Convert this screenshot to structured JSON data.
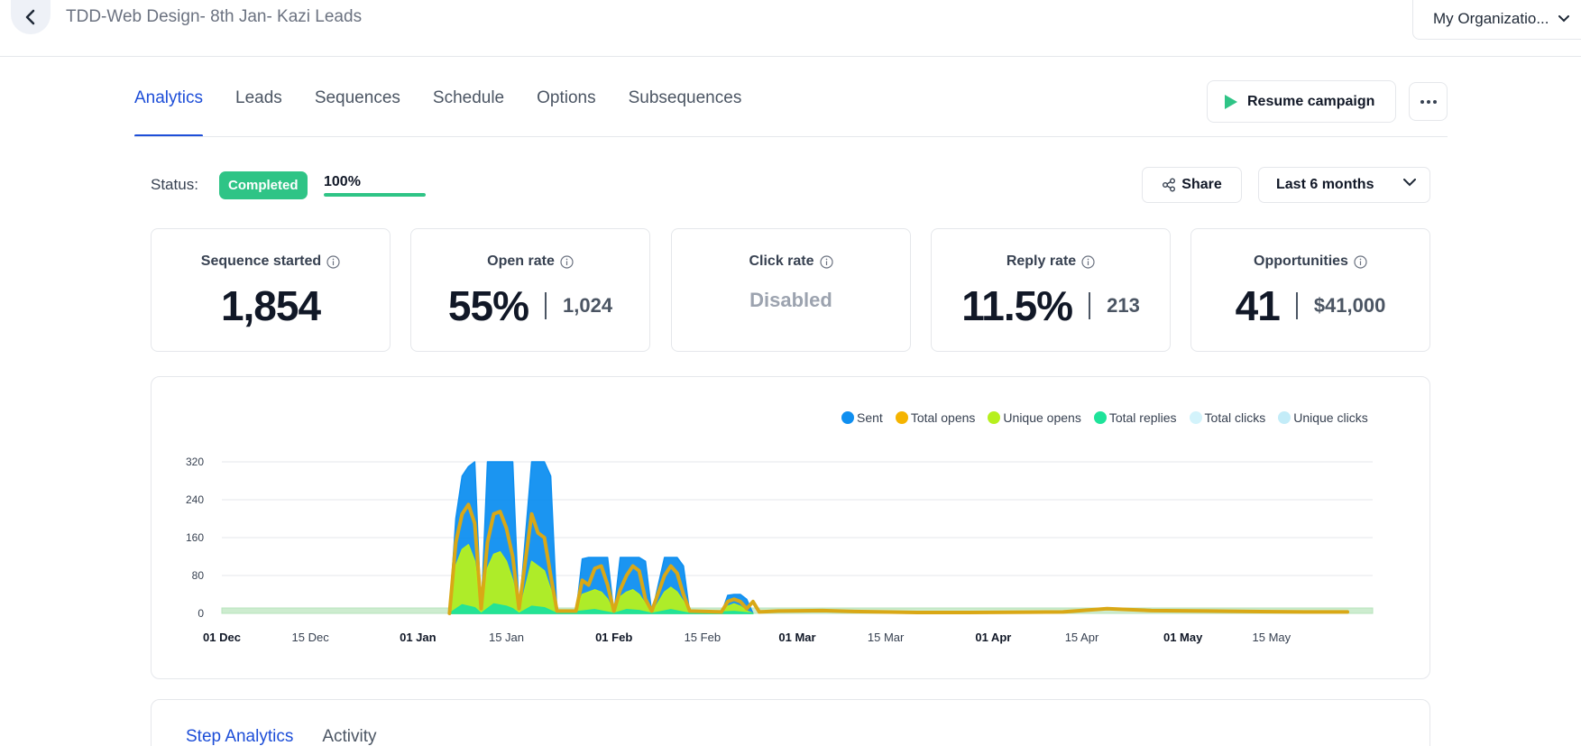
{
  "header": {
    "campaign_title": "TDD-Web Design- 8th Jan- Kazi Leads",
    "organization": "My Organizatio..."
  },
  "tabs": [
    {
      "label": "Analytics",
      "active": true
    },
    {
      "label": "Leads"
    },
    {
      "label": "Sequences"
    },
    {
      "label": "Schedule"
    },
    {
      "label": "Options"
    },
    {
      "label": "Subsequences"
    }
  ],
  "actions": {
    "resume_label": "Resume campaign",
    "share_label": "Share",
    "date_range": "Last 6 months"
  },
  "status": {
    "label": "Status:",
    "value": "Completed",
    "progress_text": "100%",
    "progress": 100
  },
  "stats": {
    "sequence_started": {
      "title": "Sequence started",
      "value": "1,854"
    },
    "open_rate": {
      "title": "Open rate",
      "value": "55%",
      "count": "1,024"
    },
    "click_rate": {
      "title": "Click rate",
      "value": "Disabled"
    },
    "reply_rate": {
      "title": "Reply rate",
      "value": "11.5%",
      "count": "213"
    },
    "opportunities": {
      "title": "Opportunities",
      "value": "41",
      "amount": "$41,000"
    }
  },
  "colors": {
    "accent": "#1d4ed8",
    "completed": "#2fc486",
    "sent": "#0f8ff0",
    "total_opens": "#f5b400",
    "unique_opens": "#b6f01e",
    "total_replies": "#1ee39a",
    "total_clicks": "#d3f3fb",
    "unique_clicks": "#c3ecf8"
  },
  "chart_data": {
    "type": "area",
    "ylim": [
      0,
      320
    ],
    "yticks": [
      0,
      80,
      160,
      240,
      320
    ],
    "x_ticks": [
      {
        "label": "01 Dec",
        "date": "2023-12-01",
        "bold": true
      },
      {
        "label": "15 Dec",
        "date": "2023-12-15",
        "bold": false
      },
      {
        "label": "01 Jan",
        "date": "2024-01-01",
        "bold": true
      },
      {
        "label": "15 Jan",
        "date": "2024-01-15",
        "bold": false
      },
      {
        "label": "01 Feb",
        "date": "2024-02-01",
        "bold": true
      },
      {
        "label": "15 Feb",
        "date": "2024-02-15",
        "bold": false
      },
      {
        "label": "01 Mar",
        "date": "2024-03-01",
        "bold": true
      },
      {
        "label": "15 Mar",
        "date": "2024-03-15",
        "bold": false
      },
      {
        "label": "01 Apr",
        "date": "2024-04-01",
        "bold": true
      },
      {
        "label": "15 Apr",
        "date": "2024-04-15",
        "bold": false
      },
      {
        "label": "01 May",
        "date": "2024-05-01",
        "bold": true
      },
      {
        "label": "15 May",
        "date": "2024-05-15",
        "bold": false
      }
    ],
    "x_range": [
      "2023-12-01",
      "2024-05-31"
    ],
    "series": [
      {
        "name": "Sent",
        "color": "#0f8ff0",
        "style": "area",
        "points": [
          [
            "2024-01-06",
            0
          ],
          [
            "2024-01-07",
            200
          ],
          [
            "2024-01-08",
            290
          ],
          [
            "2024-01-09",
            310
          ],
          [
            "2024-01-10",
            320
          ],
          [
            "2024-01-11",
            0
          ],
          [
            "2024-01-12",
            320
          ],
          [
            "2024-01-13",
            320
          ],
          [
            "2024-01-14",
            320
          ],
          [
            "2024-01-15",
            320
          ],
          [
            "2024-01-16",
            320
          ],
          [
            "2024-01-17",
            0
          ],
          [
            "2024-01-19",
            320
          ],
          [
            "2024-01-20",
            320
          ],
          [
            "2024-01-21",
            320
          ],
          [
            "2024-01-22",
            290
          ],
          [
            "2024-01-23",
            0
          ],
          [
            "2024-01-26",
            0
          ],
          [
            "2024-01-27",
            115
          ],
          [
            "2024-01-28",
            118
          ],
          [
            "2024-01-29",
            118
          ],
          [
            "2024-01-30",
            118
          ],
          [
            "2024-01-31",
            118
          ],
          [
            "2024-02-01",
            0
          ],
          [
            "2024-02-02",
            118
          ],
          [
            "2024-02-03",
            118
          ],
          [
            "2024-02-04",
            118
          ],
          [
            "2024-02-05",
            118
          ],
          [
            "2024-02-06",
            110
          ],
          [
            "2024-02-07",
            0
          ],
          [
            "2024-02-09",
            118
          ],
          [
            "2024-02-10",
            118
          ],
          [
            "2024-02-11",
            118
          ],
          [
            "2024-02-12",
            100
          ],
          [
            "2024-02-13",
            0
          ],
          [
            "2024-02-18",
            0
          ],
          [
            "2024-02-19",
            38
          ],
          [
            "2024-02-20",
            40
          ],
          [
            "2024-02-21",
            40
          ],
          [
            "2024-02-22",
            30
          ],
          [
            "2024-02-23",
            0
          ]
        ]
      },
      {
        "name": "Total opens",
        "color": "#f5b400",
        "style": "line",
        "points": [
          [
            "2024-01-06",
            0
          ],
          [
            "2024-01-07",
            150
          ],
          [
            "2024-01-08",
            210
          ],
          [
            "2024-01-09",
            230
          ],
          [
            "2024-01-10",
            190
          ],
          [
            "2024-01-11",
            10
          ],
          [
            "2024-01-12",
            150
          ],
          [
            "2024-01-13",
            210
          ],
          [
            "2024-01-14",
            215
          ],
          [
            "2024-01-15",
            180
          ],
          [
            "2024-01-16",
            120
          ],
          [
            "2024-01-17",
            10
          ],
          [
            "2024-01-19",
            210
          ],
          [
            "2024-01-20",
            170
          ],
          [
            "2024-01-21",
            160
          ],
          [
            "2024-01-22",
            80
          ],
          [
            "2024-01-23",
            5
          ],
          [
            "2024-01-26",
            5
          ],
          [
            "2024-01-27",
            70
          ],
          [
            "2024-01-28",
            60
          ],
          [
            "2024-01-29",
            95
          ],
          [
            "2024-01-30",
            100
          ],
          [
            "2024-01-31",
            60
          ],
          [
            "2024-02-01",
            5
          ],
          [
            "2024-02-02",
            50
          ],
          [
            "2024-02-03",
            80
          ],
          [
            "2024-02-04",
            100
          ],
          [
            "2024-02-05",
            90
          ],
          [
            "2024-02-06",
            30
          ],
          [
            "2024-02-07",
            5
          ],
          [
            "2024-02-09",
            80
          ],
          [
            "2024-02-10",
            100
          ],
          [
            "2024-02-11",
            85
          ],
          [
            "2024-02-12",
            40
          ],
          [
            "2024-02-13",
            5
          ],
          [
            "2024-02-18",
            3
          ],
          [
            "2024-02-19",
            25
          ],
          [
            "2024-02-20",
            30
          ],
          [
            "2024-02-21",
            25
          ],
          [
            "2024-02-22",
            10
          ],
          [
            "2024-02-23",
            25
          ],
          [
            "2024-02-24",
            3
          ],
          [
            "2024-02-27",
            5
          ],
          [
            "2024-03-05",
            6
          ],
          [
            "2024-03-10",
            4
          ],
          [
            "2024-03-20",
            2
          ],
          [
            "2024-03-28",
            2
          ],
          [
            "2024-04-12",
            3
          ],
          [
            "2024-04-19",
            10
          ],
          [
            "2024-04-26",
            6
          ],
          [
            "2024-05-05",
            5
          ],
          [
            "2024-05-20",
            3
          ],
          [
            "2024-05-27",
            3
          ]
        ]
      },
      {
        "name": "Unique opens",
        "color": "#b6f01e",
        "style": "area",
        "points": [
          [
            "2024-01-06",
            0
          ],
          [
            "2024-01-07",
            100
          ],
          [
            "2024-01-08",
            135
          ],
          [
            "2024-01-09",
            145
          ],
          [
            "2024-01-10",
            110
          ],
          [
            "2024-01-11",
            0
          ],
          [
            "2024-01-12",
            95
          ],
          [
            "2024-01-13",
            125
          ],
          [
            "2024-01-14",
            130
          ],
          [
            "2024-01-15",
            110
          ],
          [
            "2024-01-16",
            70
          ],
          [
            "2024-01-17",
            0
          ],
          [
            "2024-01-19",
            110
          ],
          [
            "2024-01-20",
            100
          ],
          [
            "2024-01-21",
            90
          ],
          [
            "2024-01-22",
            50
          ],
          [
            "2024-01-23",
            0
          ],
          [
            "2024-01-26",
            0
          ],
          [
            "2024-01-27",
            40
          ],
          [
            "2024-01-28",
            45
          ],
          [
            "2024-01-29",
            50
          ],
          [
            "2024-01-30",
            45
          ],
          [
            "2024-01-31",
            30
          ],
          [
            "2024-02-01",
            0
          ],
          [
            "2024-02-02",
            35
          ],
          [
            "2024-02-03",
            45
          ],
          [
            "2024-02-04",
            50
          ],
          [
            "2024-02-05",
            40
          ],
          [
            "2024-02-06",
            20
          ],
          [
            "2024-02-07",
            0
          ],
          [
            "2024-02-09",
            45
          ],
          [
            "2024-02-10",
            55
          ],
          [
            "2024-02-11",
            45
          ],
          [
            "2024-02-12",
            25
          ],
          [
            "2024-02-13",
            0
          ],
          [
            "2024-02-18",
            0
          ],
          [
            "2024-02-19",
            15
          ],
          [
            "2024-02-20",
            20
          ],
          [
            "2024-02-21",
            15
          ],
          [
            "2024-02-22",
            5
          ],
          [
            "2024-02-23",
            0
          ]
        ]
      },
      {
        "name": "Total replies",
        "color": "#1ee39a",
        "style": "area",
        "points": [
          [
            "2024-01-06",
            0
          ],
          [
            "2024-01-08",
            18
          ],
          [
            "2024-01-10",
            12
          ],
          [
            "2024-01-11",
            0
          ],
          [
            "2024-01-13",
            20
          ],
          [
            "2024-01-15",
            15
          ],
          [
            "2024-01-16",
            10
          ],
          [
            "2024-01-17",
            0
          ],
          [
            "2024-01-19",
            15
          ],
          [
            "2024-01-21",
            12
          ],
          [
            "2024-01-23",
            0
          ],
          [
            "2024-01-27",
            5
          ],
          [
            "2024-01-29",
            8
          ],
          [
            "2024-02-01",
            0
          ],
          [
            "2024-02-03",
            8
          ],
          [
            "2024-02-05",
            6
          ],
          [
            "2024-02-07",
            0
          ],
          [
            "2024-02-10",
            8
          ],
          [
            "2024-02-13",
            0
          ],
          [
            "2024-02-20",
            4
          ],
          [
            "2024-02-23",
            0
          ]
        ]
      },
      {
        "name": "Total clicks",
        "color": "#d3f3fb",
        "style": "area",
        "points": []
      },
      {
        "name": "Unique clicks",
        "color": "#c3ecf8",
        "style": "area",
        "points": []
      }
    ]
  },
  "bottom_tabs": [
    {
      "label": "Step Analytics",
      "active": true
    },
    {
      "label": "Activity"
    }
  ]
}
